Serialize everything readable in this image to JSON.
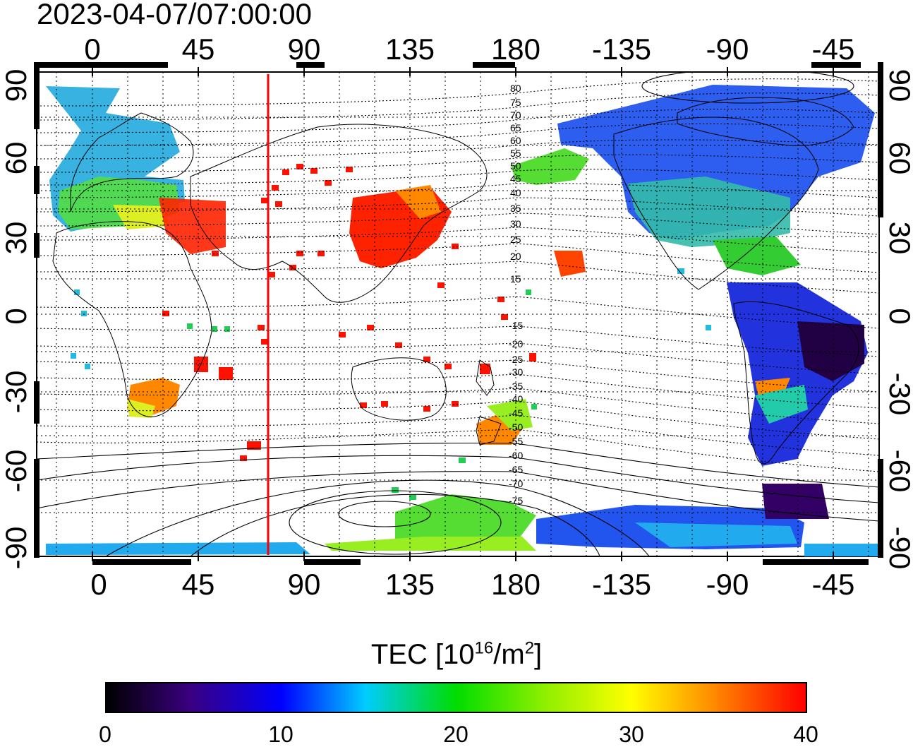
{
  "timestamp": "2023-04-07/07:00:00",
  "x_ticks": [
    "0",
    "45",
    "90",
    "135",
    "180",
    "-135",
    "-90",
    "-45"
  ],
  "y_ticks": [
    "90",
    "60",
    "30",
    "0",
    "-30",
    "-60",
    "-90"
  ],
  "contour_labels": [
    "80",
    "75",
    "70",
    "65",
    "60",
    "55",
    "50",
    "45",
    "40",
    "35",
    "30",
    "25",
    "20",
    "15",
    "-15",
    "-20",
    "-25",
    "-30",
    "-35",
    "-40",
    "-45",
    "-50",
    "-55",
    "-60",
    "-65",
    "-70",
    "-75"
  ],
  "colorbar": {
    "title": "TEC  [10",
    "title_sup1": "16",
    "title_mid": "/m",
    "title_sup2": "2",
    "title_end": "]",
    "ticks": [
      "0",
      "10",
      "20",
      "30",
      "40"
    ],
    "range": [
      0,
      40
    ]
  },
  "map_extent": {
    "lon_start": -20,
    "lon_end": 333,
    "lat_min": -90,
    "lat_max": 90
  },
  "marker_line_lon": 75,
  "colors": {
    "marker_line": "#ff0000",
    "frame": "#000000"
  }
}
